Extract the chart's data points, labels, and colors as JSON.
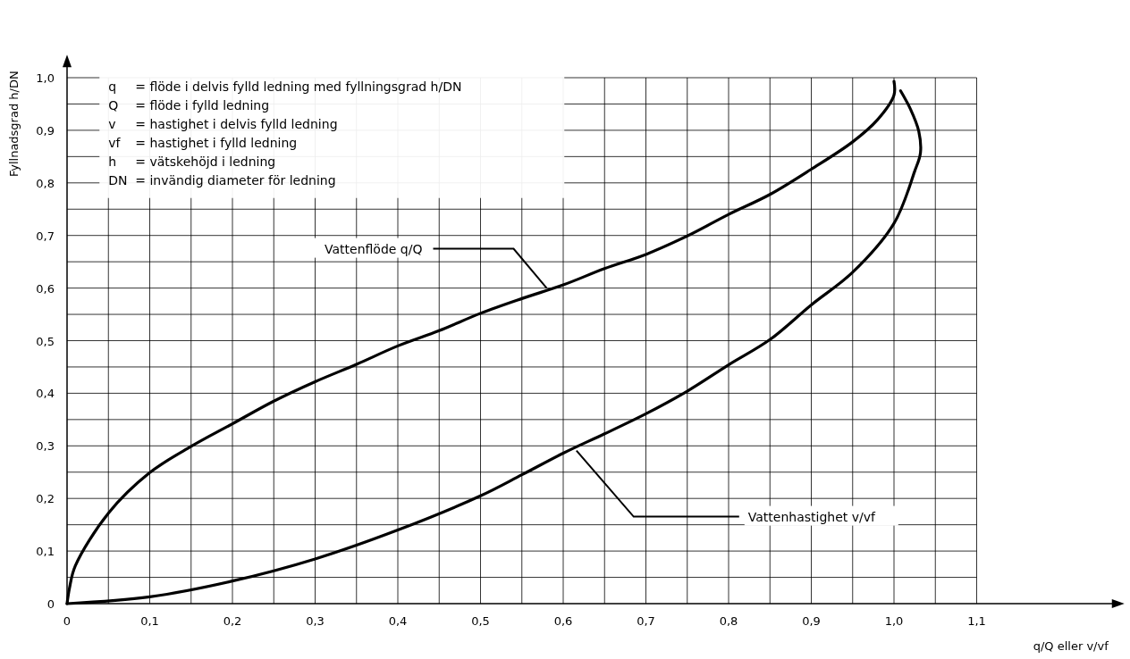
{
  "chart_data": {
    "type": "line",
    "xlabel": "q/Q eller v/vf",
    "ylabel": "Fyllnadsgrad h/DN",
    "xlim": [
      0,
      1.27
    ],
    "ylim": [
      0,
      1.03
    ],
    "xticks": [
      0,
      {
        "value": 0.05,
        "label": null
      },
      {
        "value": 0.1,
        "label": "0,1"
      },
      {
        "value": 0.15,
        "label": null
      },
      {
        "value": 0.2,
        "label": "0,2"
      },
      {
        "value": 0.25,
        "label": null
      },
      {
        "value": 0.3,
        "label": "0,3"
      },
      {
        "value": 0.35,
        "label": null
      },
      {
        "value": 0.4,
        "label": "0,4"
      },
      {
        "value": 0.45,
        "label": null
      },
      {
        "value": 0.5,
        "label": "0,5"
      },
      {
        "value": 0.55,
        "label": null
      },
      {
        "value": 0.6,
        "label": "0,6"
      },
      {
        "value": 0.65,
        "label": null
      },
      {
        "value": 0.7,
        "label": "0,7"
      },
      {
        "value": 0.75,
        "label": null
      },
      {
        "value": 0.8,
        "label": "0,8"
      },
      {
        "value": 0.85,
        "label": null
      },
      {
        "value": 0.9,
        "label": "0,9"
      },
      {
        "value": 0.95,
        "label": null
      },
      {
        "value": 1.0,
        "label": "1,0"
      },
      {
        "value": 1.05,
        "label": null
      },
      {
        "value": 1.1,
        "label": "1,1"
      }
    ],
    "yticks": [
      0,
      {
        "value": 0.05,
        "label": null
      },
      {
        "value": 0.1,
        "label": "0,1"
      },
      {
        "value": 0.15,
        "label": null
      },
      {
        "value": 0.2,
        "label": "0,2"
      },
      {
        "value": 0.25,
        "label": null
      },
      {
        "value": 0.3,
        "label": "0,3"
      },
      {
        "value": 0.35,
        "label": null
      },
      {
        "value": 0.4,
        "label": "0,4"
      },
      {
        "value": 0.45,
        "label": null
      },
      {
        "value": 0.5,
        "label": "0,5"
      },
      {
        "value": 0.55,
        "label": null
      },
      {
        "value": 0.6,
        "label": "0,6"
      },
      {
        "value": 0.65,
        "label": null
      },
      {
        "value": 0.7,
        "label": "0,7"
      },
      {
        "value": 0.75,
        "label": null
      },
      {
        "value": 0.8,
        "label": "0,8"
      },
      {
        "value": 0.85,
        "label": null
      },
      {
        "value": 0.9,
        "label": "0,9"
      },
      {
        "value": 0.95,
        "label": null
      },
      {
        "value": 1.0,
        "label": "1,0"
      }
    ],
    "grid": true,
    "marker": "none",
    "line_style": "solid",
    "series": [
      {
        "color": "#000000",
        "x": [
          0,
          0.003,
          0.01,
          0.05,
          0.1,
          0.15,
          0.2,
          0.25,
          0.3,
          0.35,
          0.4,
          0.45,
          0.5,
          0.55,
          0.6,
          0.65,
          0.7,
          0.75,
          0.8,
          0.85,
          0.9,
          0.95,
          0.98,
          1.0,
          1.0
        ],
        "values": [
          0,
          0.03,
          0.072,
          0.172,
          0.249,
          0.299,
          0.342,
          0.385,
          0.422,
          0.455,
          0.49,
          0.519,
          0.552,
          0.58,
          0.606,
          0.637,
          0.664,
          0.699,
          0.74,
          0.778,
          0.826,
          0.878,
          0.92,
          0.967,
          0.993
        ]
      },
      {
        "color": "#000000",
        "x": [
          0,
          0.1,
          0.2,
          0.3,
          0.4,
          0.5,
          0.55,
          0.6,
          0.65,
          0.7,
          0.75,
          0.8,
          0.85,
          0.9,
          0.95,
          1.0,
          1.025,
          1.032,
          1.03,
          1.02,
          1.008
        ],
        "values": [
          0,
          0.013,
          0.043,
          0.085,
          0.14,
          0.205,
          0.245,
          0.286,
          0.323,
          0.361,
          0.404,
          0.454,
          0.502,
          0.568,
          0.63,
          0.723,
          0.822,
          0.857,
          0.898,
          0.94,
          0.975
        ]
      }
    ],
    "annotations": [
      "q = flöde i delvis fylld ledning med fyllningsgrad h/DN",
      "Q = flöde i fylld ledning",
      "v = hastighet i delvis fylld ledning",
      "vf = hastighet i fylld ledning",
      "h = vätskehöjd i ledning",
      "DN = invändig diameter för ledning",
      {
        "text": "Vattenflöde q/Q",
        "x": 0.58,
        "y": 0.6
      },
      {
        "text": "Vattenhastighet v/vf",
        "x": 0.616,
        "y": 0.291
      }
    ]
  }
}
